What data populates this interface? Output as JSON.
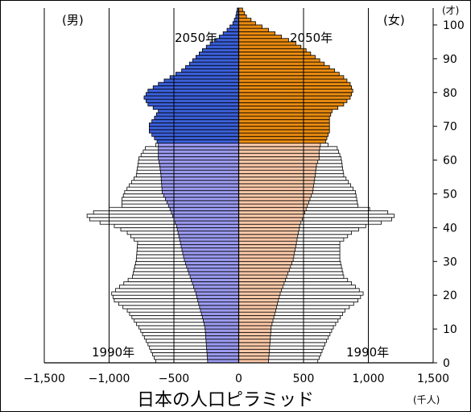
{
  "chart_data": {
    "type": "bar",
    "title": "日本の人口ピラミッド",
    "xunit": "(千人)",
    "yunit": "(才)",
    "xlim": [
      -1500,
      1500
    ],
    "ylim": [
      0,
      105
    ],
    "xticks": [
      -1500,
      -1000,
      -500,
      0,
      500,
      1000,
      1500
    ],
    "xtick_labels": [
      "−1,500",
      "−1,000",
      "−500",
      "0",
      "500",
      "1,000",
      "1,500"
    ],
    "yticks": [
      0,
      10,
      20,
      30,
      40,
      50,
      60,
      70,
      80,
      90,
      100
    ],
    "ytick_labels": [
      "0",
      "10",
      "20",
      "30",
      "40",
      "50",
      "60",
      "70",
      "80",
      "90",
      "100"
    ],
    "labels": {
      "male": "(男)",
      "female": "(女)",
      "year_2050_left": "2050年",
      "year_2050_right": "2050年",
      "year_1990_left": "1990年",
      "year_1990_right": "1990年"
    },
    "colors": {
      "outline": "#000000",
      "p1990": "#ffffff",
      "male2050_young": "#9a9af0",
      "female2050_young": "#fbc8a8",
      "male2050_old": "#3a5fd8",
      "female2050_old": "#e88a10"
    },
    "series": [
      {
        "name": "1990年",
        "age_knots": [
          0,
          5,
          10,
          15,
          18,
          20,
          22,
          25,
          30,
          35,
          38,
          40,
          41,
          42,
          43,
          44,
          45,
          46,
          48,
          50,
          55,
          60,
          63,
          65,
          70,
          75,
          80,
          85,
          90,
          95,
          100,
          103
        ],
        "male": [
          640,
          700,
          770,
          860,
          960,
          980,
          920,
          820,
          790,
          780,
          860,
          960,
          1070,
          1150,
          1170,
          1120,
          1000,
          900,
          900,
          880,
          790,
          770,
          720,
          560,
          420,
          300,
          160,
          100,
          40,
          10,
          3,
          0
        ],
        "female": [
          610,
          665,
          730,
          820,
          920,
          960,
          900,
          810,
          780,
          780,
          870,
          980,
          1100,
          1180,
          1200,
          1150,
          1010,
          920,
          910,
          900,
          810,
          790,
          760,
          620,
          560,
          460,
          330,
          200,
          90,
          25,
          5,
          0
        ]
      },
      {
        "name": "2050年",
        "old_age_start": 65,
        "age_knots": [
          0,
          10,
          20,
          30,
          40,
          45,
          50,
          55,
          58,
          60,
          62,
          64,
          65,
          66,
          68,
          70,
          72,
          74,
          76,
          78,
          80,
          82,
          84,
          86,
          88,
          90,
          92,
          94,
          96,
          98,
          100,
          102,
          104,
          105
        ],
        "male": [
          240,
          260,
          330,
          420,
          480,
          530,
          590,
          600,
          610,
          620,
          620,
          620,
          630,
          650,
          690,
          690,
          650,
          620,
          700,
          730,
          700,
          620,
          530,
          440,
          380,
          330,
          280,
          220,
          150,
          90,
          45,
          22,
          12,
          0
        ],
        "female": [
          230,
          250,
          320,
          420,
          470,
          520,
          570,
          590,
          600,
          620,
          620,
          630,
          670,
          680,
          700,
          700,
          700,
          720,
          810,
          860,
          880,
          860,
          810,
          740,
          660,
          590,
          520,
          440,
          330,
          230,
          130,
          60,
          30,
          0
        ]
      }
    ]
  }
}
